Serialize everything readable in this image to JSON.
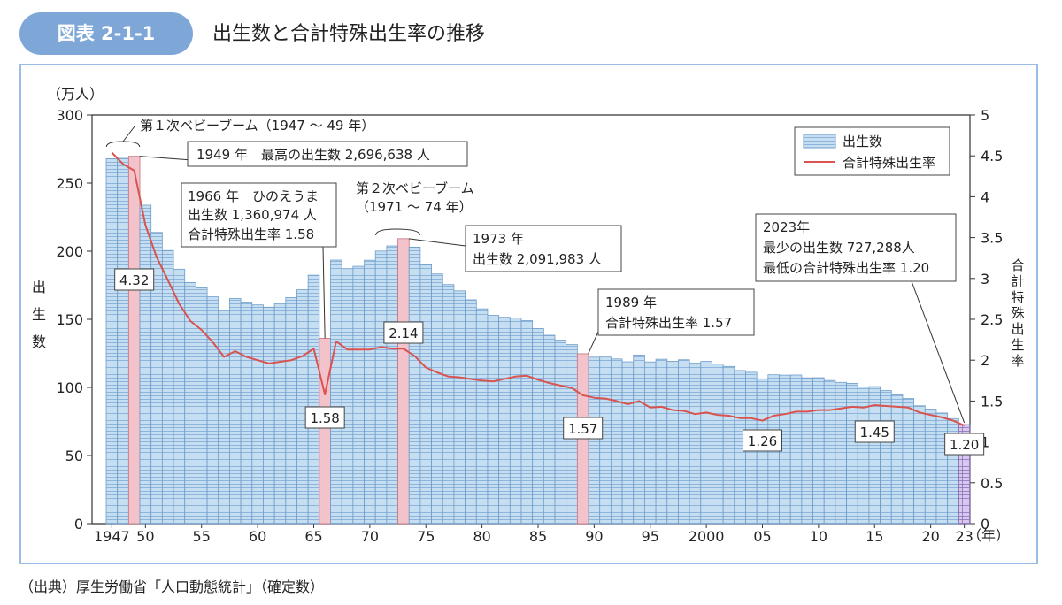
{
  "header": {
    "figure_label": "図表 2-1-1",
    "title": "出生数と合計特殊出生率の推移"
  },
  "source": "（出典）厚生労働省「人口動態統計」（確定数）",
  "colors": {
    "bar_fill": "#c6def2",
    "bar_line": "#6e9cc8",
    "highlight_fill": "#f3c3cb",
    "highlight_line": "#c9707e",
    "line": "#d9534f",
    "frame": "#9bbde3",
    "badge": "#7ea7d8"
  },
  "chart_data": {
    "type": "bar",
    "secondary_type": "line",
    "title": "出生数と合計特殊出生率の推移",
    "y_unit": "（万人）",
    "ylabel": "出生数",
    "y2label": "合計特殊出生率",
    "x_unit": "（年）",
    "ylim": [
      0,
      300
    ],
    "y2lim": [
      0,
      5
    ],
    "y_ticks": [
      0,
      50,
      100,
      150,
      200,
      250,
      300
    ],
    "y2_ticks": [
      "0",
      "0.5",
      "1",
      "1.5",
      "2",
      "2.5",
      "3",
      "3.5",
      "4",
      "4.5",
      "5"
    ],
    "x_ticks": [
      {
        "year": 1947,
        "label": "1947"
      },
      {
        "year": 1950,
        "label": "50"
      },
      {
        "year": 1955,
        "label": "55"
      },
      {
        "year": 1960,
        "label": "60"
      },
      {
        "year": 1965,
        "label": "65"
      },
      {
        "year": 1970,
        "label": "70"
      },
      {
        "year": 1975,
        "label": "75"
      },
      {
        "year": 1980,
        "label": "80"
      },
      {
        "year": 1985,
        "label": "85"
      },
      {
        "year": 1990,
        "label": "90"
      },
      {
        "year": 1995,
        "label": "95"
      },
      {
        "year": 2000,
        "label": "2000"
      },
      {
        "year": 2005,
        "label": "05"
      },
      {
        "year": 2010,
        "label": "10"
      },
      {
        "year": 2015,
        "label": "15"
      },
      {
        "year": 2020,
        "label": "20"
      },
      {
        "year": 2023,
        "label": "23"
      }
    ],
    "legend": {
      "position": "top-right",
      "bar_label": "出生数",
      "line_label": "合計特殊出生率"
    },
    "highlight_years": [
      1949,
      1966,
      1973,
      1989
    ],
    "series": [
      {
        "name": "出生数",
        "unit": "万人",
        "years": [
          1947,
          1948,
          1949,
          1950,
          1951,
          1952,
          1953,
          1954,
          1955,
          1956,
          1957,
          1958,
          1959,
          1960,
          1961,
          1962,
          1963,
          1964,
          1965,
          1966,
          1967,
          1968,
          1969,
          1970,
          1971,
          1972,
          1973,
          1974,
          1975,
          1976,
          1977,
          1978,
          1979,
          1980,
          1981,
          1982,
          1983,
          1984,
          1985,
          1986,
          1987,
          1988,
          1989,
          1990,
          1991,
          1992,
          1993,
          1994,
          1995,
          1996,
          1997,
          1998,
          1999,
          2000,
          2001,
          2002,
          2003,
          2004,
          2005,
          2006,
          2007,
          2008,
          2009,
          2010,
          2011,
          2012,
          2013,
          2014,
          2015,
          2016,
          2017,
          2018,
          2019,
          2020,
          2021,
          2022,
          2023
        ],
        "values": [
          267.9,
          268.2,
          269.7,
          233.8,
          213.8,
          200.5,
          186.8,
          177.0,
          173.1,
          166.5,
          156.7,
          165.3,
          162.6,
          160.6,
          158.9,
          161.9,
          166.0,
          171.7,
          182.4,
          136.1,
          193.5,
          187.2,
          188.9,
          193.4,
          200.1,
          203.9,
          209.2,
          203.0,
          190.1,
          183.3,
          175.5,
          170.9,
          164.3,
          157.7,
          152.9,
          151.5,
          150.9,
          149.0,
          143.2,
          138.3,
          134.7,
          131.4,
          124.7,
          122.2,
          122.3,
          120.9,
          118.8,
          123.8,
          118.7,
          120.7,
          119.2,
          120.3,
          117.8,
          119.1,
          117.1,
          115.4,
          112.4,
          111.1,
          106.3,
          109.3,
          109.0,
          109.1,
          107.0,
          107.1,
          105.1,
          103.7,
          103.0,
          100.4,
          100.6,
          97.7,
          94.6,
          91.8,
          86.5,
          84.1,
          81.2,
          77.1,
          72.7
        ]
      },
      {
        "name": "合計特殊出生率",
        "values": [
          4.54,
          4.4,
          4.32,
          3.65,
          3.26,
          2.98,
          2.69,
          2.48,
          2.37,
          2.22,
          2.04,
          2.11,
          2.04,
          2.0,
          1.96,
          1.98,
          2.0,
          2.05,
          2.14,
          1.58,
          2.23,
          2.13,
          2.13,
          2.13,
          2.16,
          2.14,
          2.14,
          2.05,
          1.91,
          1.85,
          1.8,
          1.79,
          1.77,
          1.75,
          1.74,
          1.77,
          1.8,
          1.81,
          1.76,
          1.72,
          1.69,
          1.66,
          1.57,
          1.54,
          1.53,
          1.5,
          1.46,
          1.5,
          1.42,
          1.43,
          1.39,
          1.38,
          1.34,
          1.36,
          1.33,
          1.32,
          1.29,
          1.29,
          1.26,
          1.32,
          1.34,
          1.37,
          1.37,
          1.39,
          1.39,
          1.41,
          1.43,
          1.42,
          1.45,
          1.44,
          1.43,
          1.42,
          1.36,
          1.33,
          1.3,
          1.26,
          1.2
        ]
      }
    ],
    "annotations": {
      "boom1": "第１次ベビーブーム（1947 ～ 49 年）",
      "a1949": "1949 年　最高の出生数 2,696,638 人",
      "a1966_l1": "1966 年　ひのえうま",
      "a1966_l2": "出生数 1,360,974 人",
      "a1966_l3": "合計特殊出生率 1.58",
      "boom2_l1": "第２次ベビーブーム",
      "boom2_l2": "（1971 ～ 74 年）",
      "a1973_l1": "1973 年",
      "a1973_l2": "出生数 2,091,983 人",
      "a1989_l1": "1989 年",
      "a1989_l2": "合計特殊出生率 1.57",
      "a2023_l1": "2023年",
      "a2023_l2": "最少の出生数 727,288人",
      "a2023_l3": "最低の合計特殊出生率 1.20"
    },
    "data_labels": [
      {
        "year": 1949,
        "text": "4.32"
      },
      {
        "year": 1966,
        "text": "1.58"
      },
      {
        "year": 1973,
        "text": "2.14"
      },
      {
        "year": 1989,
        "text": "1.57"
      },
      {
        "year": 2005,
        "text": "1.26"
      },
      {
        "year": 2015,
        "text": "1.45"
      },
      {
        "year": 2023,
        "text": "1.20"
      }
    ]
  }
}
